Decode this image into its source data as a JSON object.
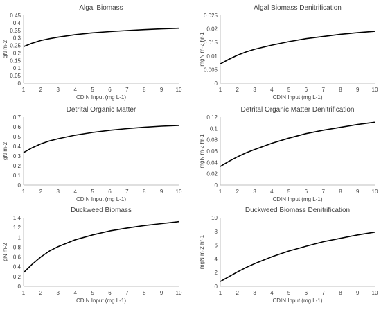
{
  "chart_data": [
    {
      "type": "line",
      "title": "Algal Biomass",
      "xlabel": "CDIN Input (mg L-1)",
      "ylabel": "gN m-2",
      "xlim": [
        1,
        10
      ],
      "ylim": [
        0,
        0.45
      ],
      "x_ticks": [
        1,
        2,
        3,
        4,
        5,
        6,
        7,
        8,
        9,
        10
      ],
      "y_ticks": [
        0,
        0.05,
        0.1,
        0.15,
        0.2,
        0.25,
        0.3,
        0.35,
        0.4,
        0.45
      ],
      "y_tick_labels": [
        "0",
        "0.05",
        "0.1",
        "0.15",
        "0.2",
        "0.25",
        "0.3",
        "0.35",
        "0.4",
        "0.45"
      ],
      "grid": false,
      "series": [
        {
          "color": "#000000",
          "x": [
            1,
            1.5,
            2,
            2.5,
            3,
            4,
            5,
            6,
            7,
            8,
            9,
            10
          ],
          "y": [
            0.242,
            0.265,
            0.283,
            0.295,
            0.305,
            0.322,
            0.334,
            0.342,
            0.349,
            0.355,
            0.36,
            0.364
          ]
        }
      ]
    },
    {
      "type": "line",
      "title": "Algal Biomass Denitrification",
      "xlabel": "CDIN Input (mg L-1)",
      "ylabel": "mgN m-2 hr-1",
      "xlim": [
        1,
        10
      ],
      "ylim": [
        0,
        0.025
      ],
      "x_ticks": [
        1,
        2,
        3,
        4,
        5,
        6,
        7,
        8,
        9,
        10
      ],
      "y_ticks": [
        0,
        0.005,
        0.01,
        0.015,
        0.02,
        0.025
      ],
      "y_tick_labels": [
        "0",
        "0.005",
        "0.01",
        "0.015",
        "0.02",
        "0.025"
      ],
      "grid": false,
      "series": [
        {
          "color": "#000000",
          "x": [
            1,
            1.5,
            2,
            2.5,
            3,
            4,
            5,
            6,
            7,
            8,
            9,
            10
          ],
          "y": [
            0.0071,
            0.0088,
            0.0103,
            0.0115,
            0.0125,
            0.014,
            0.0153,
            0.0164,
            0.0172,
            0.018,
            0.0186,
            0.0191
          ]
        }
      ]
    },
    {
      "type": "line",
      "title": "Detrital Organic Matter",
      "xlabel": "CDIN Input (mg L-1)",
      "ylabel": "gN m-2",
      "xlim": [
        1,
        10
      ],
      "ylim": [
        0,
        0.7
      ],
      "x_ticks": [
        1,
        2,
        3,
        4,
        5,
        6,
        7,
        8,
        9,
        10
      ],
      "y_ticks": [
        0,
        0.1,
        0.2,
        0.3,
        0.4,
        0.5,
        0.6,
        0.7
      ],
      "y_tick_labels": [
        "0",
        "0.1",
        "0.2",
        "0.3",
        "0.4",
        "0.5",
        "0.6",
        "0.7"
      ],
      "grid": false,
      "series": [
        {
          "color": "#000000",
          "x": [
            1,
            1.5,
            2,
            2.5,
            3,
            4,
            5,
            6,
            7,
            8,
            9,
            10
          ],
          "y": [
            0.335,
            0.385,
            0.425,
            0.455,
            0.478,
            0.515,
            0.543,
            0.565,
            0.582,
            0.596,
            0.607,
            0.615
          ]
        }
      ]
    },
    {
      "type": "line",
      "title": "Detrital Organic Matter Denitrification",
      "xlabel": "CDIN Input (mg L-1)",
      "ylabel": "mgN m-2 hr-1",
      "xlim": [
        1,
        10
      ],
      "ylim": [
        0,
        0.12
      ],
      "x_ticks": [
        1,
        2,
        3,
        4,
        5,
        6,
        7,
        8,
        9,
        10
      ],
      "y_ticks": [
        0,
        0.02,
        0.04,
        0.06,
        0.08,
        0.1,
        0.12
      ],
      "y_tick_labels": [
        "0",
        "0.02",
        "0.04",
        "0.06",
        "0.08",
        "0.1",
        "0.12"
      ],
      "grid": false,
      "series": [
        {
          "color": "#000000",
          "x": [
            1,
            1.5,
            2,
            2.5,
            3,
            4,
            5,
            6,
            7,
            8,
            9,
            10
          ],
          "y": [
            0.033,
            0.042,
            0.05,
            0.057,
            0.063,
            0.074,
            0.083,
            0.091,
            0.097,
            0.102,
            0.107,
            0.111
          ]
        }
      ]
    },
    {
      "type": "line",
      "title": "Duckweed Biomass",
      "xlabel": "CDIN Input (mg L-1)",
      "ylabel": "gN m-2",
      "xlim": [
        1,
        10
      ],
      "ylim": [
        0,
        1.4
      ],
      "x_ticks": [
        1,
        2,
        3,
        4,
        5,
        6,
        7,
        8,
        9,
        10
      ],
      "y_ticks": [
        0,
        0.2,
        0.4,
        0.6,
        0.8,
        1,
        1.2,
        1.4
      ],
      "y_tick_labels": [
        "0",
        "0.2",
        "0.4",
        "0.6",
        "0.8",
        "1",
        "1.2",
        "1.4"
      ],
      "grid": false,
      "series": [
        {
          "color": "#000000",
          "x": [
            1,
            1.5,
            2,
            2.5,
            3,
            4,
            5,
            6,
            7,
            8,
            9,
            10
          ],
          "y": [
            0.28,
            0.45,
            0.6,
            0.72,
            0.81,
            0.95,
            1.05,
            1.13,
            1.19,
            1.24,
            1.28,
            1.32
          ]
        }
      ]
    },
    {
      "type": "line",
      "title": "Duckweed Biomass Denitrification",
      "xlabel": "CDIN Input (mg L-1)",
      "ylabel": "mgN m-2 hr-1",
      "xlim": [
        1,
        10
      ],
      "ylim": [
        0,
        10
      ],
      "x_ticks": [
        1,
        2,
        3,
        4,
        5,
        6,
        7,
        8,
        9,
        10
      ],
      "y_ticks": [
        0,
        2,
        4,
        6,
        8,
        10
      ],
      "y_tick_labels": [
        "0",
        "2",
        "4",
        "6",
        "8",
        "10"
      ],
      "grid": false,
      "series": [
        {
          "color": "#000000",
          "x": [
            1,
            1.5,
            2,
            2.5,
            3,
            4,
            5,
            6,
            7,
            8,
            9,
            10
          ],
          "y": [
            0.7,
            1.4,
            2.1,
            2.75,
            3.3,
            4.3,
            5.15,
            5.85,
            6.5,
            7.0,
            7.5,
            7.9
          ]
        }
      ]
    }
  ]
}
